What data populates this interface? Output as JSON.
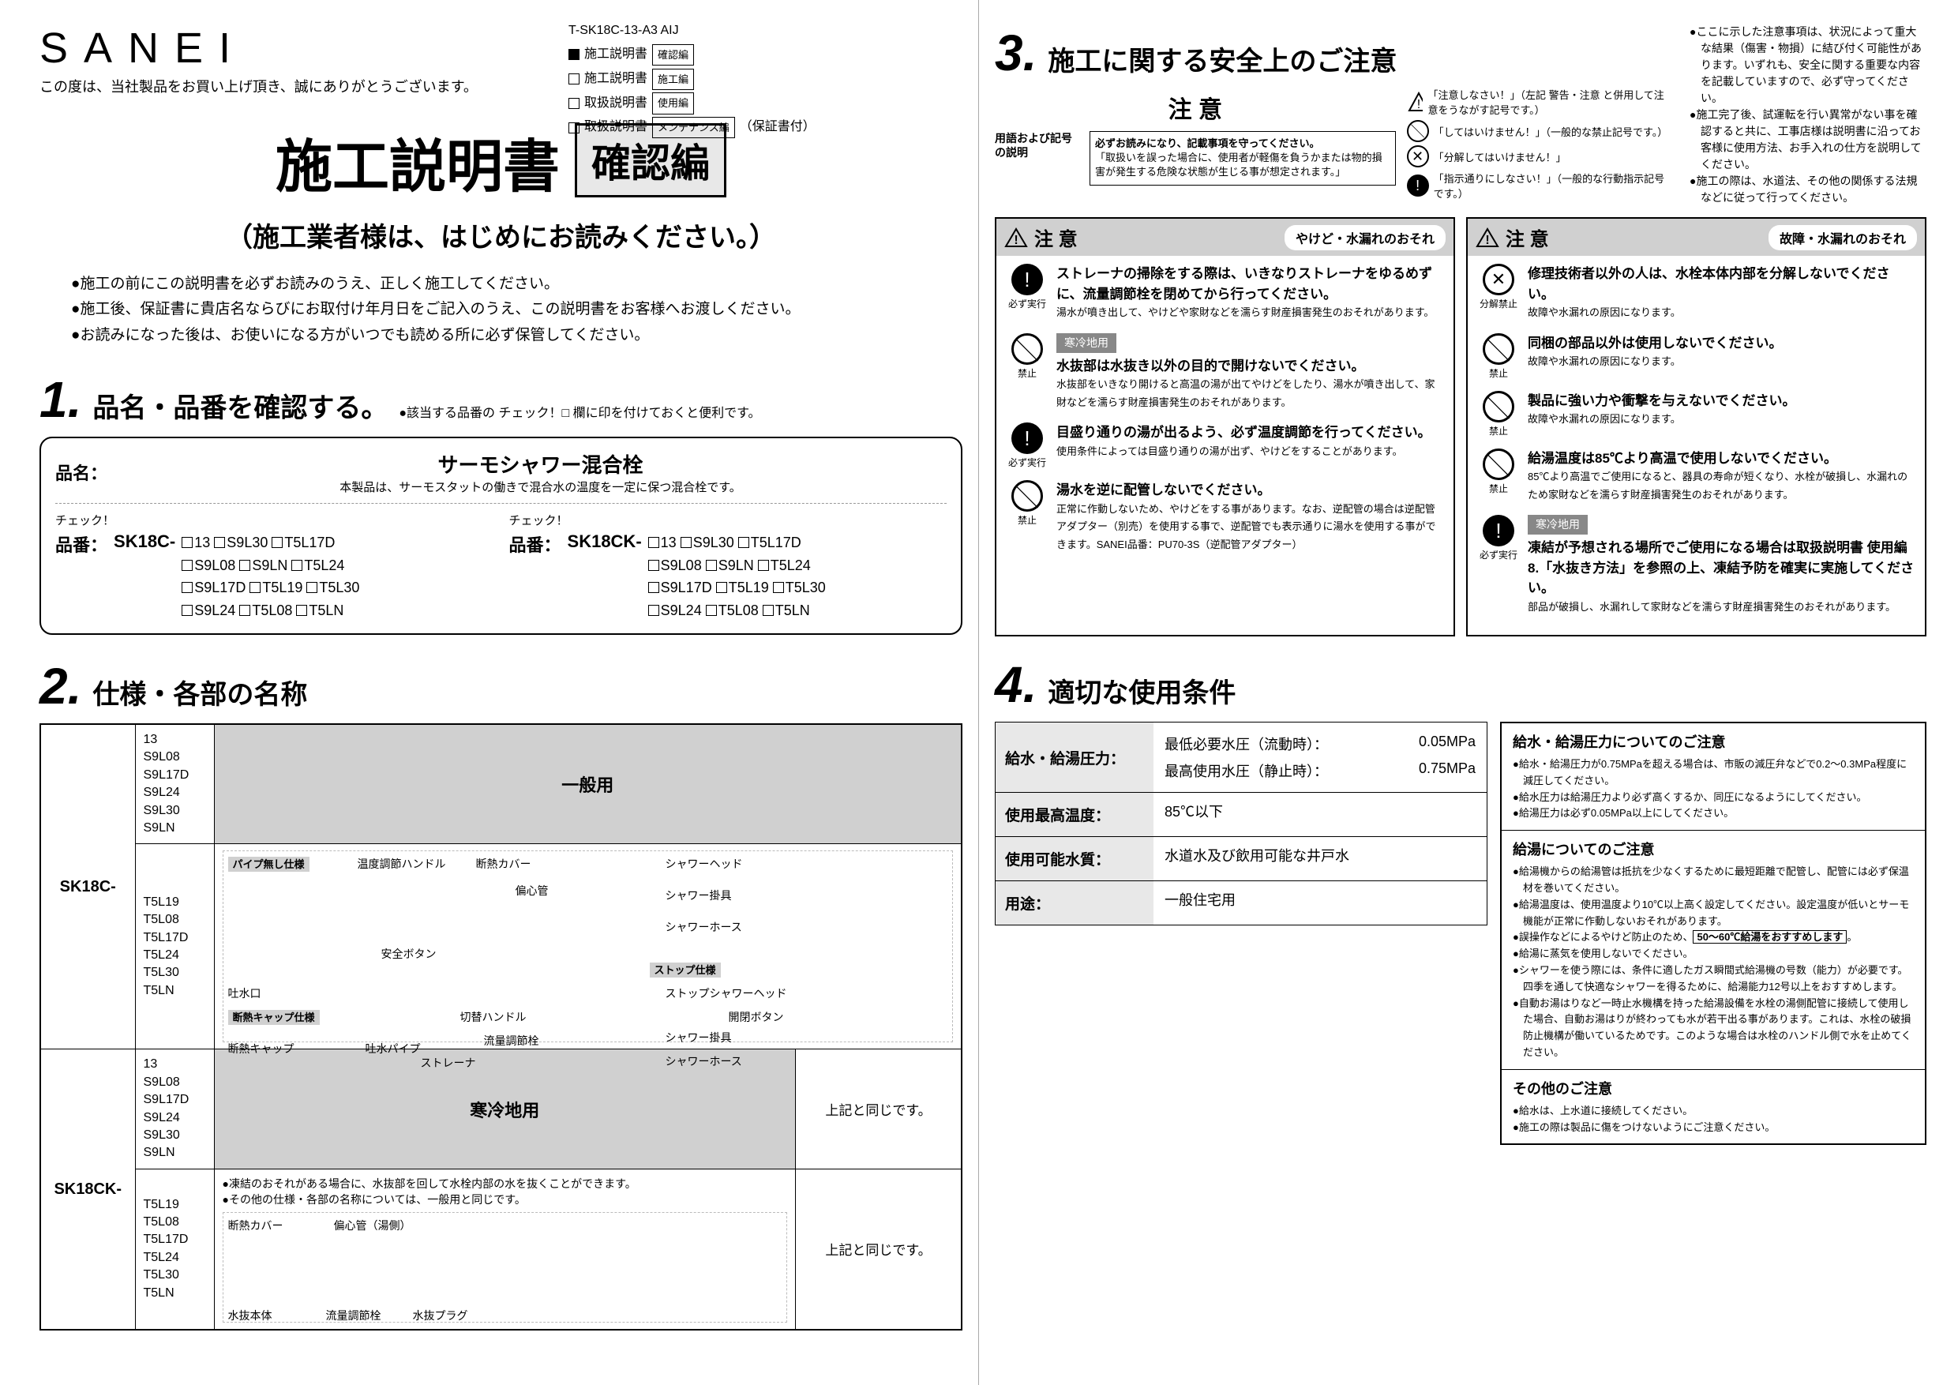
{
  "brand": "SANEI",
  "thanks": "この度は、当社製品をお買い上げ頂き、誠にありがとうございます。",
  "doc_code": "T-SK18C-13-A3 AIJ",
  "doc_types": [
    {
      "filled": true,
      "name": "施工説明書",
      "tag": "確認編"
    },
    {
      "filled": false,
      "name": "施工説明書",
      "tag": "施工編"
    },
    {
      "filled": false,
      "name": "取扱説明書",
      "tag": "使用編"
    },
    {
      "filled": false,
      "name": "取扱説明書",
      "tag": "メンテナンス編",
      "note": "（保証書付）"
    }
  ],
  "main_title": "施工説明書",
  "main_badge": "確認編",
  "subtitle": "（施工業者様は、はじめにお読みください。）",
  "intro": [
    "●施工の前にこの説明書を必ずお読みのうえ、正しく施工してください。",
    "●施工後、保証書に貴店名ならびにお取付け年月日をご記入のうえ、この説明書をお客様へお渡しください。",
    "●お読みになった後は、お使いになる方がいつでも読める所に必ず保管してください。"
  ],
  "sec1": {
    "num": "1.",
    "title": "品名・品番を確認する。",
    "note": "●該当する品番の チェック！□ 欄に印を付けておくと便利です。",
    "name_label": "品名：",
    "product": "サーモシャワー混合栓",
    "product_desc": "本製品は、サーモスタットの働きで混合水の温度を一定に保つ混合栓です。",
    "pn_label": "品番：",
    "groups": [
      {
        "prefix": "SK18C-",
        "opts": [
          [
            "13",
            "S9L30",
            "T5L17D"
          ],
          [
            "S9L08",
            "S9LN",
            "T5L24"
          ],
          [
            "S9L17D",
            "T5L19",
            "T5L30"
          ],
          [
            "S9L24",
            "T5L08",
            "T5LN"
          ]
        ]
      },
      {
        "prefix": "SK18CK-",
        "opts": [
          [
            "13",
            "S9L30",
            "T5L17D"
          ],
          [
            "S9L08",
            "S9LN",
            "T5L24"
          ],
          [
            "S9L17D",
            "T5L19",
            "T5L30"
          ],
          [
            "S9L24",
            "T5L08",
            "T5LN"
          ]
        ]
      }
    ],
    "check_label": "チェック！"
  },
  "sec2": {
    "num": "2.",
    "title": "仕様・各部の名称",
    "col_general": "一般用",
    "col_cold": "寒冷地用",
    "models": [
      {
        "prefix": "SK18C-",
        "variants_a": [
          "13",
          "S9L08",
          "S9L17D",
          "S9L24",
          "S9L30",
          "S9LN"
        ],
        "variants_b": [
          "T5L19",
          "T5L08",
          "T5L17D",
          "T5L24",
          "T5L30",
          "T5LN"
        ]
      },
      {
        "prefix": "SK18CK-",
        "variants_a": [
          "13",
          "S9L08",
          "S9L17D",
          "S9L24",
          "S9L30",
          "S9LN"
        ],
        "variants_b": [
          "T5L19",
          "T5L08",
          "T5L17D",
          "T5L24",
          "T5L30",
          "T5LN"
        ]
      }
    ],
    "diagram_labels_general": [
      "パイプ無し仕様",
      "温度調節ハンドル",
      "断熱カバー",
      "偏心管",
      "安全ボタン",
      "吐水口",
      "断熱キャップ仕様",
      "断熱キャップ",
      "吐水パイプ",
      "切替ハンドル",
      "流量調節栓",
      "ストレーナ",
      "シャワーヘッド",
      "シャワー掛具",
      "シャワーホース",
      "ストップ仕様",
      "ストップシャワーヘッド",
      "開閉ボタン",
      "シャワー掛具",
      "シャワーホース"
    ],
    "cold_note1": "●凍結のおそれがある場合に、水抜部を回して水栓内部の水を抜くことができます。",
    "cold_note2": "●その他の仕様・各部の名称については、一般用と同じです。",
    "cold_labels": [
      "断熱カバー",
      "偏心管（湯側）",
      "水抜本体",
      "流量調節栓",
      "水抜プラグ"
    ],
    "same_as_above": "上記と同じです。"
  },
  "sec3": {
    "num": "3.",
    "title": "施工に関する安全上のご注意",
    "caution_word": "注 意",
    "term_label": "用語および記号の説明",
    "term_body_bold": "必ずお読みになり、記載事項を守ってください。",
    "term_body": "「取扱いを誤った場合に、使用者が軽傷を負うかまたは物的損害が発生する危険な状態が生じる事が想定されます。」",
    "tri_note": "「注意しなさい！」（左記 警告・注意 と併用して注意をうながす記号です。）",
    "circle_notes": [
      "「してはいけません！」（一般的な禁止記号です。）",
      "「分解してはいけません！」",
      "「指示通りにしなさい！」（一般的な行動指示記号です。）"
    ],
    "top_notes": [
      "●ここに示した注意事項は、状況によって重大な結果（傷害・物損）に結び付く可能性があります。いずれも、安全に関する重要な内容を記載していますので、必ず守ってください。",
      "●施工完了後、試運転を行い異常がない事を確認すると共に、工事店様は説明書に沿ってお客様に使用方法、お手入れの仕方を説明してください。",
      "●施工の際は、水道法、その他の関係する法規などに従って行ってください。"
    ],
    "panel_left": {
      "head": "注 意",
      "badge": "やけど・水漏れのおそれ",
      "items": [
        {
          "icon": "must",
          "icon_label": "必ず実行",
          "bold": "ストレーナの掃除をする際は、いきなりストレーナをゆるめずに、流量調節栓を閉めてから行ってください。",
          "small": "湯水が噴き出して、やけどや家財などを濡らす財産損害発生のおそれがあります。"
        },
        {
          "tag": "寒冷地用",
          "icon": "no",
          "icon_label": "禁止",
          "bold": "水抜部は水抜き以外の目的で開けないでください。",
          "small": "水抜部をいきなり開けると高温の湯が出てやけどをしたり、湯水が噴き出して、家財などを濡らす財産損害発生のおそれがあります。"
        },
        {
          "icon": "must",
          "icon_label": "必ず実行",
          "bold": "目盛り通りの湯が出るよう、必ず温度調節を行ってください。",
          "small": "使用条件によっては目盛り通りの湯が出ず、やけどをすることがあります。"
        },
        {
          "icon": "no",
          "icon_label": "禁止",
          "bold": "湯水を逆に配管しないでください。",
          "small": "正常に作動しないため、やけどをする事があります。なお、逆配管の場合は逆配管アダプター（別売）を使用する事で、逆配管でも表示通りに湯水を使用する事ができます。SANEI品番：PU70-3S（逆配管アダプター）"
        }
      ]
    },
    "panel_right": {
      "head": "注 意",
      "badge": "故障・水漏れのおそれ",
      "items": [
        {
          "icon": "nodis",
          "icon_label": "分解禁止",
          "bold": "修理技術者以外の人は、水栓本体内部を分解しないでください。",
          "small": "故障や水漏れの原因になります。"
        },
        {
          "icon": "no",
          "icon_label": "禁止",
          "bold": "同梱の部品以外は使用しないでください。",
          "small": "故障や水漏れの原因になります。"
        },
        {
          "icon": "no",
          "icon_label": "禁止",
          "bold": "製品に強い力や衝撃を与えないでください。",
          "small": "故障や水漏れの原因になります。"
        },
        {
          "icon": "no",
          "icon_label": "禁止",
          "bold": "給湯温度は85℃より高温で使用しないでください。",
          "small": "85℃より高温でご使用になると、器具の寿命が短くなり、水栓が破損し、水漏れのため家財などを濡らす財産損害発生のおそれがあります。"
        },
        {
          "tag": "寒冷地用",
          "icon": "must",
          "icon_label": "必ず実行",
          "bold": "凍結が予想される場所でご使用になる場合は取扱説明書 使用編 8.「水抜き方法」を参照の上、凍結予防を確実に実施してください。",
          "small": "部品が破損し、水漏れして家財などを濡らす財産損害発生のおそれがあります。"
        }
      ]
    }
  },
  "sec4": {
    "num": "4.",
    "title": "適切な使用条件",
    "rows": [
      {
        "label": "給水・給湯圧力：",
        "sub": [
          {
            "k": "最低必要水圧（流動時）：",
            "v": "0.05MPa"
          },
          {
            "k": "最高使用水圧（静止時）：",
            "v": "0.75MPa"
          }
        ]
      },
      {
        "label": "使用最高温度：",
        "val": "85℃以下"
      },
      {
        "label": "使用可能水質：",
        "val": "水道水及び飲用可能な井戸水"
      },
      {
        "label": "用途：",
        "val": "一般住宅用"
      }
    ],
    "advice": [
      {
        "title": "給水・給湯圧力についてのご注意",
        "items": [
          "●給水・給湯圧力が0.75MPaを超える場合は、市販の減圧弁などで0.2～0.3MPa程度に減圧してください。",
          "●給水圧力は給湯圧力より必ず高くするか、同圧になるようにしてください。",
          "●給湯圧力は必ず0.05MPa以上にしてください。"
        ]
      },
      {
        "title": "給湯についてのご注意",
        "items": [
          "●給湯機からの給湯管は抵抗を少なくするために最短距離で配管し、配管には必ず保温材を巻いてください。",
          "●給湯温度は、使用温度より10℃以上高く設定してください。設定温度が低いとサーモ機能が正常に作動しないおそれがあります。",
          "●誤操作などによるやけど防止のため、50～60℃給湯をおすすめします。",
          "●給湯に蒸気を使用しないでください。",
          "●シャワーを使う際には、条件に適したガス瞬間式給湯機の号数（能力）が必要です。四季を通して快適なシャワーを得るために、給湯能力12号以上をおすすめします。",
          "●自動お湯はりなど一時止水機構を持った給湯設備を水栓の湯側配管に接続して使用した場合、自動お湯はりが終わっても水が若干出る事があります。これは、水栓の破損防止機構が働いているためです。このような場合は水栓のハンドル側で水を止めてください。"
        ]
      },
      {
        "title": "その他のご注意",
        "items": [
          "●給水は、上水道に接続してください。",
          "●施工の際は製品に傷をつけないようにご注意ください。"
        ]
      }
    ]
  },
  "colors": {
    "panel_bg": "#d0d0d0",
    "tag_bg": "#888888"
  }
}
